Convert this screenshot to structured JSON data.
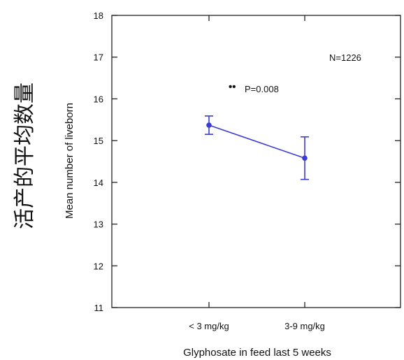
{
  "chart_data": {
    "type": "line",
    "title": "",
    "outer_ylabel": "活产的平均数量",
    "ylabel": "Mean number of liveborn",
    "xlabel": "Glyphosate  in feed last 5 weeks",
    "categories": [
      "< 3 mg/kg",
      "3-9 mg/kg"
    ],
    "series": [
      {
        "values": [
          15.37,
          14.58
        ],
        "error_low": [
          15.15,
          14.07
        ],
        "error_high": [
          15.59,
          15.09
        ]
      }
    ],
    "ylim": [
      11,
      18
    ],
    "yticks": [
      "11",
      "12",
      "13",
      "14",
      "15",
      "16",
      "17",
      "18"
    ],
    "annotations": {
      "n": "N=1226",
      "significance_marks": "••",
      "p_value": "P=0.008"
    },
    "colors": {
      "series": "#3b3bd6",
      "axis": "#222222"
    },
    "grid": false
  }
}
